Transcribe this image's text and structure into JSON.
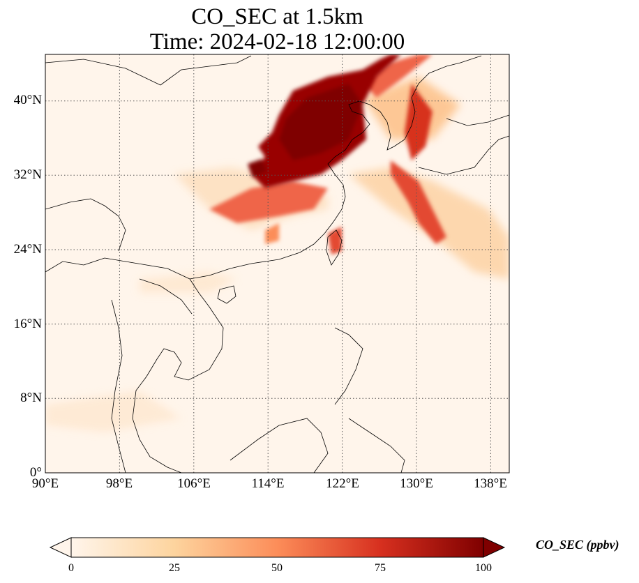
{
  "title": {
    "line1": "CO_SEC at 1.5km",
    "line2": "Time: 2024-02-18 12:00:00"
  },
  "map": {
    "projection": "PlateCarree",
    "extent": {
      "lon": [
        90,
        140
      ],
      "lat": [
        0,
        45
      ]
    },
    "gridlines": "dotted",
    "lat_ticks": [
      "40°N",
      "32°N",
      "24°N",
      "16°N",
      "8°N",
      "0°"
    ],
    "lat_values": [
      40,
      32,
      24,
      16,
      8,
      0
    ],
    "lon_ticks": [
      "90°E",
      "98°E",
      "106°E",
      "114°E",
      "122°E",
      "130°E",
      "138°E"
    ],
    "lon_values": [
      90,
      98,
      106,
      114,
      122,
      130,
      138
    ],
    "background_color": "#fff5eb",
    "coastline_color": "#000000"
  },
  "colorbar": {
    "label": "CO_SEC (ppbv)",
    "colormap": "OrRd",
    "range": [
      0,
      100
    ],
    "extend": "both",
    "ticks": [
      "0",
      "25",
      "50",
      "75",
      "100"
    ],
    "tick_values": [
      0,
      25,
      50,
      75,
      100
    ],
    "colors": [
      "#fff5eb",
      "#fdd49e",
      "#fc8d59",
      "#d7301f",
      "#7f0000"
    ]
  }
}
